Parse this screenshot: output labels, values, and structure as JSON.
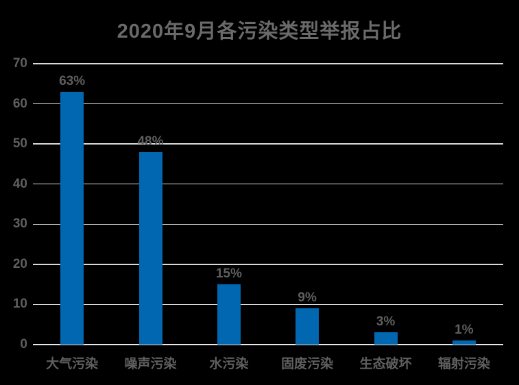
{
  "chart_data": {
    "type": "bar",
    "title": "2020年9月各污染类型举报占比",
    "categories": [
      "大气污染",
      "噪声污染",
      "水污染",
      "固废污染",
      "生态破坏",
      "辐射污染"
    ],
    "values": [
      63,
      48,
      15,
      9,
      3,
      1
    ],
    "data_labels": [
      "63%",
      "48%",
      "15%",
      "9%",
      "3%",
      "1%"
    ],
    "xlabel": "",
    "ylabel": "",
    "ylim": [
      0,
      70
    ],
    "yticks": [
      0,
      10,
      20,
      30,
      40,
      50,
      60,
      70
    ],
    "grid": true,
    "legend": "none",
    "colors": {
      "background": "#000000",
      "bar": "#0067B0",
      "title_text": "#6a6a6a",
      "label_text": "#5f5f5f",
      "gridline": "#d9d9d9",
      "axis_line": "#e8e8e8"
    }
  }
}
